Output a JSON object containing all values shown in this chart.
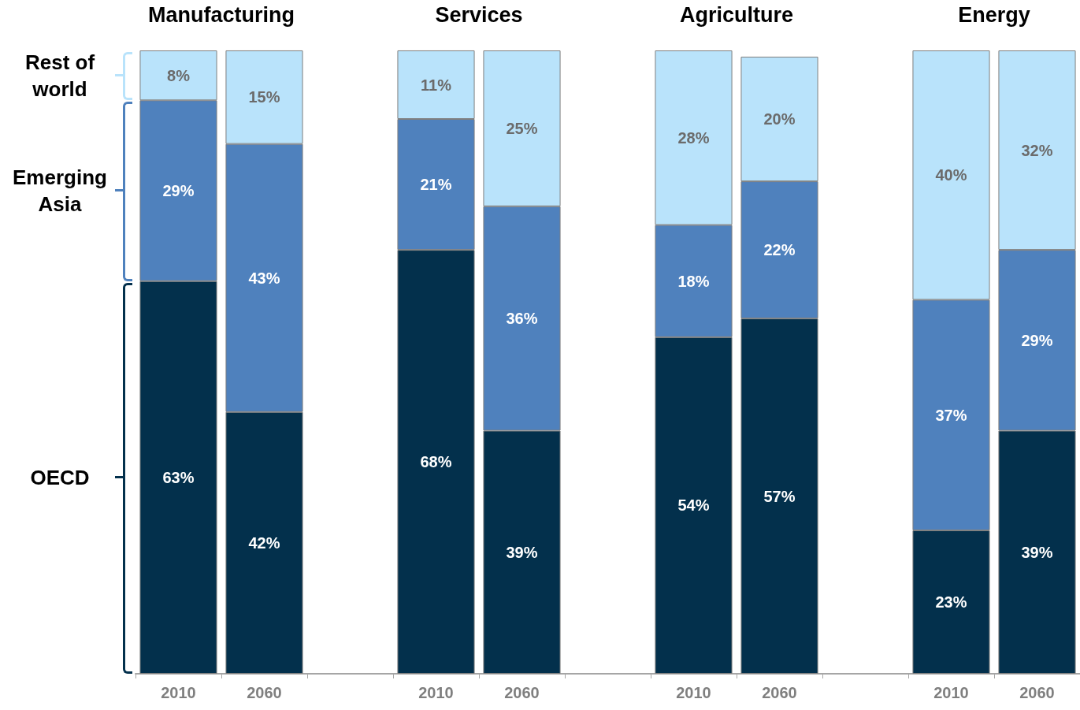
{
  "chart_data": {
    "type": "bar",
    "stacked": true,
    "legend": "left",
    "tick_labels": "x",
    "annotations": [
      "Manufacturing",
      "Services",
      "Agriculture",
      "Energy"
    ],
    "categories": [
      "2010",
      "2060",
      null,
      "2010",
      "2060",
      null,
      "2010",
      "2060",
      null,
      "2010",
      "2060"
    ],
    "series": [
      {
        "name": "OECD",
        "color": "#03304c",
        "values": [
          63,
          42,
          null,
          68,
          39,
          null,
          54,
          57,
          null,
          23,
          39
        ],
        "value_labels": [
          "63%",
          "42%",
          null,
          "68%",
          "39%",
          null,
          "54%",
          "57%",
          null,
          "23%",
          "39%"
        ]
      },
      {
        "name": "Emerging Asia",
        "color": "#4f81bd",
        "values": [
          29,
          43,
          null,
          21,
          36,
          null,
          18,
          22,
          null,
          37,
          29
        ],
        "value_labels": [
          "29%",
          "43%",
          null,
          "21%",
          "36%",
          null,
          "18%",
          "22%",
          null,
          "37%",
          "29%"
        ]
      },
      {
        "name": "Rest of world",
        "color": "#b9e3fb",
        "values": [
          8,
          15,
          null,
          11,
          25,
          null,
          28,
          20,
          null,
          40,
          32
        ],
        "value_labels": [
          "8%",
          "15%",
          null,
          "11%",
          "25%",
          null,
          "28%",
          "20%",
          null,
          "40%",
          "32%"
        ]
      }
    ]
  }
}
